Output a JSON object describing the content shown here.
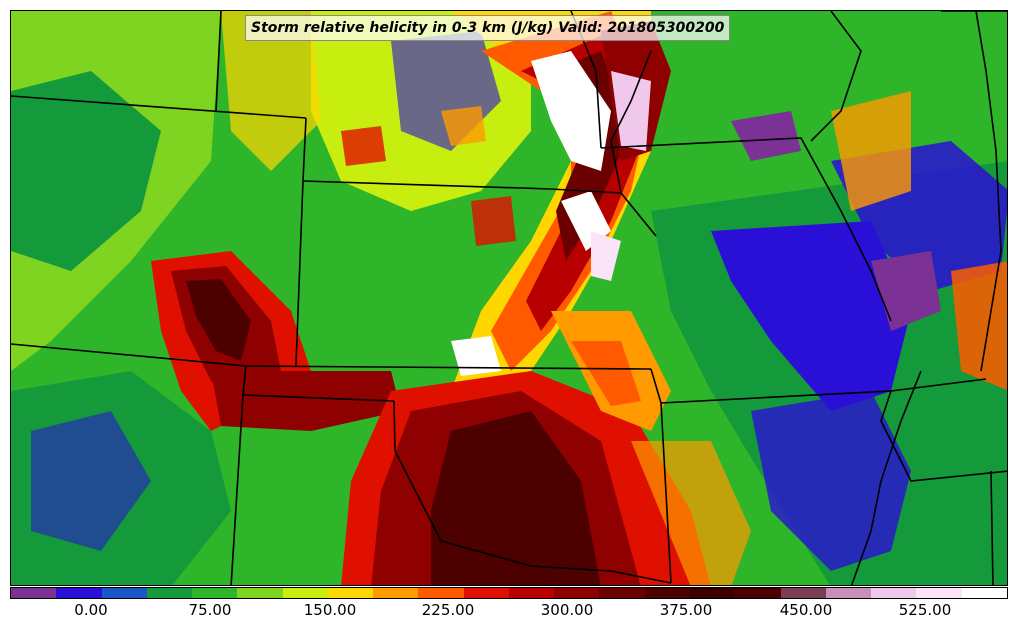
{
  "title": "Storm relative helicity in 0-3 km (J/kg) Valid: 201805300200",
  "colorbar": {
    "colors": [
      "#7b3294",
      "#2a0fd6",
      "#1a56c8",
      "#149a3a",
      "#2fb52a",
      "#7fd321",
      "#c8ee10",
      "#ffd700",
      "#ff9a00",
      "#ff5a00",
      "#e01000",
      "#b80000",
      "#8f0000",
      "#6a0000",
      "#4d0000",
      "#3a0000",
      "#4a0000",
      "#7a3d55",
      "#c890b8",
      "#f0c8ec",
      "#fbe4f8",
      "#ffffff"
    ],
    "ticks": [
      "0.00",
      "75.00",
      "150.00",
      "225.00",
      "300.00",
      "375.00",
      "450.00",
      "525.00"
    ]
  },
  "field_palette": {
    "purple": "#7b3294",
    "blue": "#2a0fd6",
    "green": "#149a3a",
    "lightgreen": "#2fb52a",
    "lime": "#c8ee10",
    "yellow": "#ffd700",
    "orange": "#ff9a00",
    "red": "#e01000",
    "darkred": "#8f0000",
    "maroon": "#4d0000",
    "pink": "#f0c8ec",
    "white": "#ffffff"
  }
}
